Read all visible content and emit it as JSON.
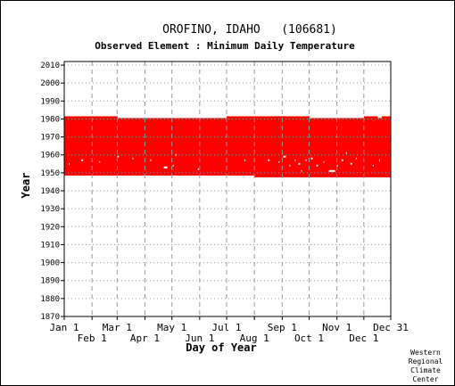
{
  "chart_data": {
    "type": "heatmap",
    "title": "OROFINO, IDAHO   (106681)",
    "subtitle": "Observed Element : Minimum Daily Temperature",
    "xlabel": "Day of Year",
    "ylabel": "Year",
    "x_range": [
      1,
      365
    ],
    "ylim": [
      1870,
      2012
    ],
    "grid": true,
    "x_ticks_upper": [
      {
        "label": "Jan 1",
        "day": 1
      },
      {
        "label": "Mar 1",
        "day": 60
      },
      {
        "label": "May 1",
        "day": 121
      },
      {
        "label": "Jul 1",
        "day": 182
      },
      {
        "label": "Sep 1",
        "day": 244
      },
      {
        "label": "Nov 1",
        "day": 305
      },
      {
        "label": "Dec 31",
        "day": 365
      }
    ],
    "x_ticks_lower": [
      {
        "label": "Feb 1",
        "day": 32
      },
      {
        "label": "Apr 1",
        "day": 91
      },
      {
        "label": "Jun 1",
        "day": 152
      },
      {
        "label": "Aug 1",
        "day": 213
      },
      {
        "label": "Oct 1",
        "day": 274
      },
      {
        "label": "Dec 1",
        "day": 335
      }
    ],
    "y_ticks": [
      2010,
      2000,
      1990,
      1980,
      1970,
      1960,
      1950,
      1940,
      1930,
      1920,
      1910,
      1900,
      1890,
      1880,
      1870
    ],
    "data_color": "#ff0000",
    "grid_color": "#999999",
    "record_blocks": [
      {
        "day_start": 1,
        "day_end": 32,
        "year_start": 1948.5,
        "year_end": 1981.5
      },
      {
        "day_start": 32,
        "day_end": 60,
        "year_start": 1948.5,
        "year_end": 1981.5
      },
      {
        "day_start": 60,
        "day_end": 91,
        "year_start": 1948.5,
        "year_end": 1980.5
      },
      {
        "day_start": 91,
        "day_end": 121,
        "year_start": 1948.5,
        "year_end": 1980.5
      },
      {
        "day_start": 121,
        "day_end": 182,
        "year_start": 1948.5,
        "year_end": 1980.5
      },
      {
        "day_start": 182,
        "day_end": 213,
        "year_start": 1948.5,
        "year_end": 1981.5
      },
      {
        "day_start": 213,
        "day_end": 244,
        "year_start": 1947.5,
        "year_end": 1981.5
      },
      {
        "day_start": 244,
        "day_end": 274,
        "year_start": 1947.5,
        "year_end": 1981.5
      },
      {
        "day_start": 274,
        "day_end": 335,
        "year_start": 1947.5,
        "year_end": 1980.5
      },
      {
        "day_start": 335,
        "day_end": 350,
        "year_start": 1947.5,
        "year_end": 1981.5
      },
      {
        "day_start": 350,
        "day_end": 355,
        "year_start": 1947.5,
        "year_end": 1980.5
      },
      {
        "day_start": 355,
        "day_end": 365,
        "year_start": 1947.5,
        "year_end": 1981.5
      }
    ],
    "missing_days": [
      {
        "day_start": 6,
        "day_end": 7,
        "year": 1955
      },
      {
        "day_start": 20,
        "day_end": 22,
        "year": 1957
      },
      {
        "day_start": 40,
        "day_end": 41,
        "year": 1956
      },
      {
        "day_start": 60,
        "day_end": 62,
        "year": 1959
      },
      {
        "day_start": 77,
        "day_end": 78,
        "year": 1958
      },
      {
        "day_start": 97,
        "day_end": 98,
        "year": 1957
      },
      {
        "day_start": 112,
        "day_end": 116,
        "year": 1953
      },
      {
        "day_start": 122,
        "day_end": 123,
        "year": 1954
      },
      {
        "day_start": 125,
        "day_end": 126,
        "year": 1960
      },
      {
        "day_start": 150,
        "day_end": 151,
        "year": 1952
      },
      {
        "day_start": 202,
        "day_end": 203,
        "year": 1957
      },
      {
        "day_start": 228,
        "day_end": 230,
        "year": 1957
      },
      {
        "day_start": 240,
        "day_end": 241,
        "year": 1956
      },
      {
        "day_start": 245,
        "day_end": 248,
        "year": 1959
      },
      {
        "day_start": 252,
        "day_end": 253,
        "year": 1954
      },
      {
        "day_start": 258,
        "day_end": 259,
        "year": 1957
      },
      {
        "day_start": 262,
        "day_end": 264,
        "year": 1955
      },
      {
        "day_start": 265,
        "day_end": 266,
        "year": 1951
      },
      {
        "day_start": 270,
        "day_end": 271,
        "year": 1957
      },
      {
        "day_start": 276,
        "day_end": 278,
        "year": 1958
      },
      {
        "day_start": 282,
        "day_end": 284,
        "year": 1954
      },
      {
        "day_start": 290,
        "day_end": 291,
        "year": 1956
      },
      {
        "day_start": 296,
        "day_end": 303,
        "year": 1951
      },
      {
        "day_start": 305,
        "day_end": 306,
        "year": 1954
      },
      {
        "day_start": 310,
        "day_end": 312,
        "year": 1957
      },
      {
        "day_start": 315,
        "day_end": 316,
        "year": 1961
      },
      {
        "day_start": 320,
        "day_end": 322,
        "year": 1955
      },
      {
        "day_start": 326,
        "day_end": 327,
        "year": 1958
      },
      {
        "day_start": 345,
        "day_end": 346,
        "year": 1954
      },
      {
        "day_start": 352,
        "day_end": 353,
        "year": 1957
      }
    ]
  },
  "credit_lines": [
    "Western",
    "Regional",
    "Climate",
    "Center"
  ]
}
